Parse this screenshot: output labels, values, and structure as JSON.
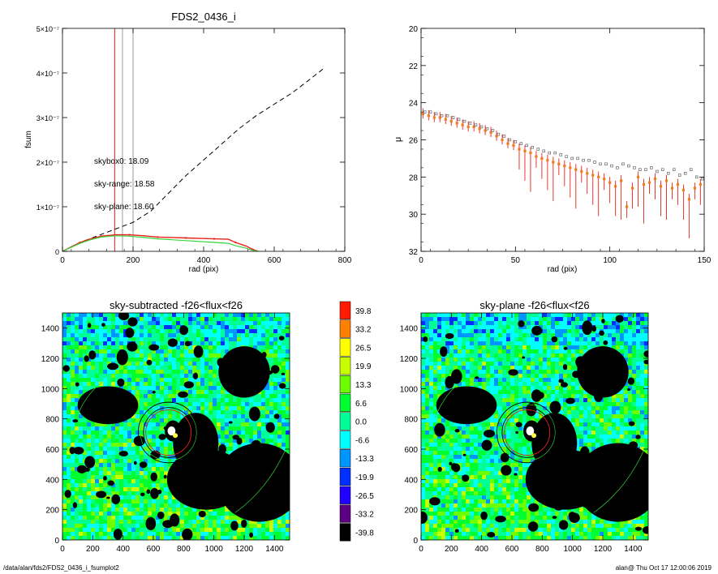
{
  "footer": {
    "path": "/data/alan/fds2/FDS2_0436_i_fsumplot2",
    "stamp": "alan@  Thu Oct 17 12:00:06 2019"
  },
  "colors": {
    "red": "#e8201a",
    "green": "#35d63a",
    "gray": "#999999",
    "orange": "#f07c1a",
    "mask": "#000000"
  },
  "chart_data": [
    {
      "type": "line",
      "title": "FDS2_0436_i",
      "xlabel": "rad (pix)",
      "ylabel": "fsum",
      "xlim": [
        0,
        800
      ],
      "ylim": [
        0,
        5e-07
      ],
      "xticks": [
        "0",
        "200",
        "400",
        "600",
        "800"
      ],
      "yticks": [
        "0",
        "1×10⁻⁷",
        "2×10⁻⁷",
        "3×10⁻⁷",
        "4×10⁻⁷",
        "5×10⁻⁷"
      ],
      "vlines": [
        {
          "x": 148,
          "color": "red"
        },
        {
          "x": 170,
          "color": "gray"
        },
        {
          "x": 200,
          "color": "gray"
        }
      ],
      "annotations": [
        {
          "text": "skybox0: 18.09",
          "color": "black"
        },
        {
          "text": "sky-range: 18.58",
          "color": "red"
        },
        {
          "text": "sky-plane: 18.60",
          "color": "green"
        }
      ],
      "series": [
        {
          "style": "dashed-black",
          "x": [
            0,
            50,
            100,
            150,
            200,
            250,
            300,
            350,
            400,
            450,
            500,
            550,
            600,
            650,
            700,
            740
          ],
          "y": [
            0,
            2e-08,
            3.5e-08,
            5e-08,
            6.5e-08,
            9e-08,
            1.3e-07,
            1.7e-07,
            2.05e-07,
            2.4e-07,
            2.75e-07,
            3.05e-07,
            3.3e-07,
            3.55e-07,
            3.85e-07,
            4.1e-07
          ]
        },
        {
          "style": "red",
          "x": [
            0,
            20,
            50,
            80,
            110,
            150,
            190,
            230,
            270,
            310,
            350,
            390,
            430,
            470,
            490,
            520,
            540,
            555
          ],
          "y": [
            0,
            8e-09,
            2e-08,
            2.8e-08,
            3.4e-08,
            3.7e-08,
            3.7e-08,
            3.5e-08,
            3.2e-08,
            3.1e-08,
            3e-08,
            2.9e-08,
            2.8e-08,
            2.7e-08,
            2e-08,
            1.2e-08,
            4e-09,
            0
          ]
        },
        {
          "style": "green",
          "x": [
            0,
            20,
            50,
            80,
            110,
            150,
            190,
            230,
            270,
            310,
            350,
            390,
            430,
            470,
            490,
            520,
            540,
            555
          ],
          "y": [
            0,
            7e-09,
            1.8e-08,
            2.6e-08,
            3.2e-08,
            3.5e-08,
            3.4e-08,
            3.1e-08,
            2.8e-08,
            2.6e-08,
            2.4e-08,
            2.2e-08,
            2e-08,
            1.8e-08,
            1.3e-08,
            7e-09,
            2e-09,
            0
          ]
        }
      ]
    },
    {
      "type": "scatter",
      "xlabel": "rad (pix)",
      "ylabel": "μ",
      "xlim": [
        0,
        150
      ],
      "ylim": [
        32,
        20
      ],
      "xticks": [
        "0",
        "50",
        "100",
        "150"
      ],
      "yticks": [
        "20",
        "22",
        "24",
        "26",
        "28",
        "30",
        "32"
      ],
      "series": [
        {
          "name": "sky-range",
          "color": "orange",
          "x": [
            1,
            4,
            7,
            10,
            13,
            16,
            19,
            22,
            25,
            28,
            31,
            34,
            37,
            40,
            43,
            46,
            49,
            52,
            55,
            58,
            61,
            64,
            67,
            70,
            73,
            76,
            79,
            82,
            85,
            88,
            91,
            94,
            97,
            100,
            103,
            106,
            109,
            112,
            115,
            118,
            121,
            124,
            127,
            130,
            133,
            136,
            139,
            142,
            145,
            148
          ],
          "y": [
            24.6,
            24.7,
            24.8,
            24.8,
            24.9,
            25.0,
            25.1,
            25.2,
            25.3,
            25.3,
            25.4,
            25.5,
            25.6,
            25.8,
            26.0,
            26.2,
            26.3,
            26.5,
            26.6,
            26.7,
            26.9,
            27.0,
            27.1,
            27.2,
            27.3,
            27.4,
            27.5,
            27.6,
            27.7,
            27.8,
            27.9,
            28.0,
            28.1,
            28.3,
            28.5,
            28.2,
            29.6,
            28.6,
            28.0,
            28.4,
            28.3,
            28.1,
            28.5,
            28.2,
            28.6,
            28.4,
            28.7,
            29.2,
            28.6,
            28.4
          ]
        },
        {
          "name": "skybox0",
          "color": "gray",
          "x": [
            2,
            5,
            8,
            11,
            14,
            17,
            20,
            23,
            26,
            29,
            32,
            35,
            38,
            41,
            44,
            47,
            50,
            53,
            56,
            59,
            62,
            65,
            68,
            71,
            74,
            77,
            80,
            83,
            86,
            89,
            92,
            95,
            98,
            101,
            104,
            107,
            110,
            113,
            116,
            119,
            122,
            125,
            128,
            131,
            134,
            137,
            140,
            143,
            146,
            149
          ],
          "y": [
            24.5,
            24.5,
            24.6,
            24.7,
            24.7,
            24.8,
            24.9,
            25.0,
            25.1,
            25.2,
            25.3,
            25.4,
            25.5,
            25.7,
            25.8,
            26.0,
            26.1,
            26.2,
            26.3,
            26.4,
            26.5,
            26.6,
            26.7,
            26.7,
            26.8,
            26.9,
            27.0,
            27.0,
            27.1,
            27.1,
            27.2,
            27.3,
            27.3,
            27.4,
            27.5,
            27.3,
            27.4,
            27.5,
            27.6,
            27.6,
            27.5,
            27.7,
            27.6,
            27.8,
            27.6,
            27.9,
            27.8,
            27.6,
            28.0,
            28.1
          ]
        }
      ]
    },
    {
      "type": "heatmap",
      "title": "sky-subtracted -f26<flux<f26",
      "xlim": [
        0,
        1500
      ],
      "ylim": [
        0,
        1500
      ],
      "xticks": [
        "0",
        "200",
        "400",
        "600",
        "800",
        "1000",
        "1200",
        "1400"
      ],
      "yticks": [
        "0",
        "200",
        "400",
        "600",
        "800",
        "1000",
        "1200",
        "1400"
      ],
      "seed": 7
    },
    {
      "type": "heatmap",
      "title": "sky-plane -f26<flux<f26",
      "xlim": [
        0,
        1500
      ],
      "ylim": [
        0,
        1500
      ],
      "xticks": [
        "0",
        "200",
        "400",
        "600",
        "800",
        "1000",
        "1200",
        "1400"
      ],
      "yticks": [
        "0",
        "200",
        "400",
        "600",
        "800",
        "1000",
        "1200",
        "1400"
      ],
      "seed": 11
    },
    {
      "type": "table",
      "name": "colorbar",
      "labels": [
        "39.8",
        "33.2",
        "26.5",
        "19.9",
        "13.3",
        "6.6",
        "0.0",
        "-6.6",
        "-13.3",
        "-19.9",
        "-26.5",
        "-33.2",
        "-39.8"
      ],
      "colors": [
        "#ff1a00",
        "#ff8000",
        "#ffff00",
        "#c8ff00",
        "#6cff00",
        "#00ff30",
        "#00ff96",
        "#00ffff",
        "#0096ff",
        "#0030ff",
        "#2000ff",
        "#5a0080",
        "#000000"
      ]
    }
  ]
}
